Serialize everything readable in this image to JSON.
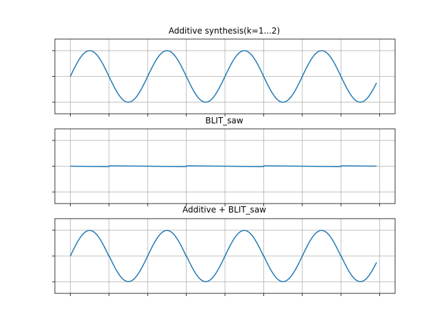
{
  "chart_data": [
    {
      "type": "line",
      "title": "Additive synthesis(k=1...2)",
      "xlabel": "",
      "ylabel": "",
      "xlim": [
        -0.2,
        4.2
      ],
      "ylim": [
        -1.45,
        1.45
      ],
      "x_ticks": [
        0,
        0.5,
        1,
        1.5,
        2,
        2.5,
        3,
        3.5,
        4
      ],
      "y_ticks": [
        -1,
        0,
        1
      ],
      "grid": true,
      "x_range": [
        0,
        4
      ],
      "series": [
        {
          "function": "sine",
          "amplitude": 1.0,
          "cycles": 4,
          "x_start": 0,
          "x_end": 3.96,
          "color": "#1f77b4"
        }
      ]
    },
    {
      "type": "line",
      "title": "BLIT_saw",
      "xlabel": "",
      "ylabel": "",
      "xlim": [
        -0.2,
        4.2
      ],
      "ylim": [
        -1.45,
        1.45
      ],
      "x_ticks": [
        0,
        0.5,
        1,
        1.5,
        2,
        2.5,
        3,
        3.5,
        4
      ],
      "y_ticks": [
        -1,
        0,
        1
      ],
      "grid": true,
      "series": [
        {
          "function": "sawtooth",
          "amplitude": 0.03,
          "period": 1.0,
          "jump_offset": 0.5,
          "x_start": 0,
          "x_end": 3.96,
          "color": "#1f77b4"
        }
      ]
    },
    {
      "type": "line",
      "title": "Additive + BLIT_saw",
      "xlabel": "",
      "ylabel": "",
      "xlim": [
        -0.2,
        4.2
      ],
      "ylim": [
        -1.45,
        1.45
      ],
      "x_ticks": [
        0,
        0.5,
        1,
        1.5,
        2,
        2.5,
        3,
        3.5,
        4
      ],
      "y_ticks": [
        -1,
        0,
        1
      ],
      "grid": true,
      "series": [
        {
          "function": "sine+sawtooth",
          "amplitude": 1.0,
          "cycles": 4,
          "saw_amplitude": 0.03,
          "x_start": 0,
          "x_end": 3.96,
          "color": "#1f77b4"
        }
      ]
    }
  ]
}
